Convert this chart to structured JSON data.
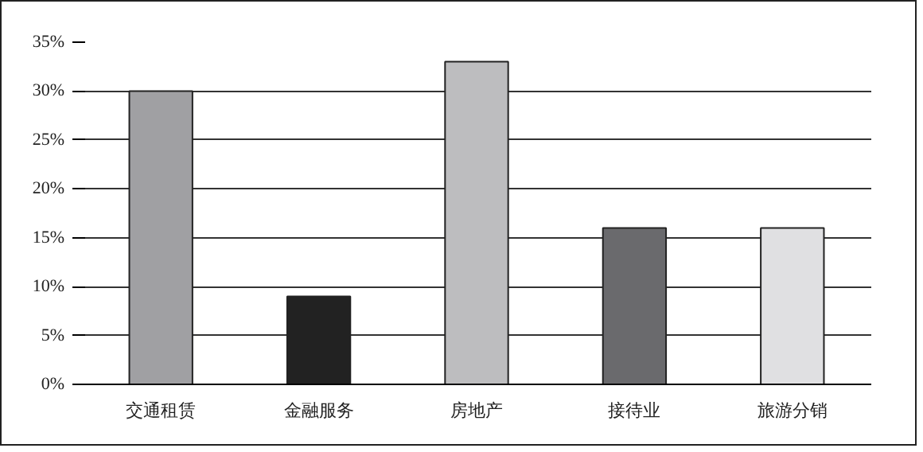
{
  "chart_data": {
    "type": "bar",
    "categories": [
      "交通租赁",
      "金融服务",
      "房地产",
      "接待业",
      "旅游分销"
    ],
    "values": [
      30,
      9,
      33,
      16,
      16
    ],
    "colors": [
      "#a0a0a3",
      "#222222",
      "#bdbdbf",
      "#6a6a6d",
      "#e0e0e2"
    ],
    "ylim": [
      0,
      35
    ],
    "yticks": [
      {
        "value": 0,
        "label": "0%"
      },
      {
        "value": 5,
        "label": "5%"
      },
      {
        "value": 10,
        "label": "10%"
      },
      {
        "value": 15,
        "label": "15%"
      },
      {
        "value": 20,
        "label": "20%"
      },
      {
        "value": 25,
        "label": "25%"
      },
      {
        "value": 30,
        "label": "30%"
      },
      {
        "value": 35,
        "label": "35%"
      }
    ],
    "grid": "y"
  }
}
